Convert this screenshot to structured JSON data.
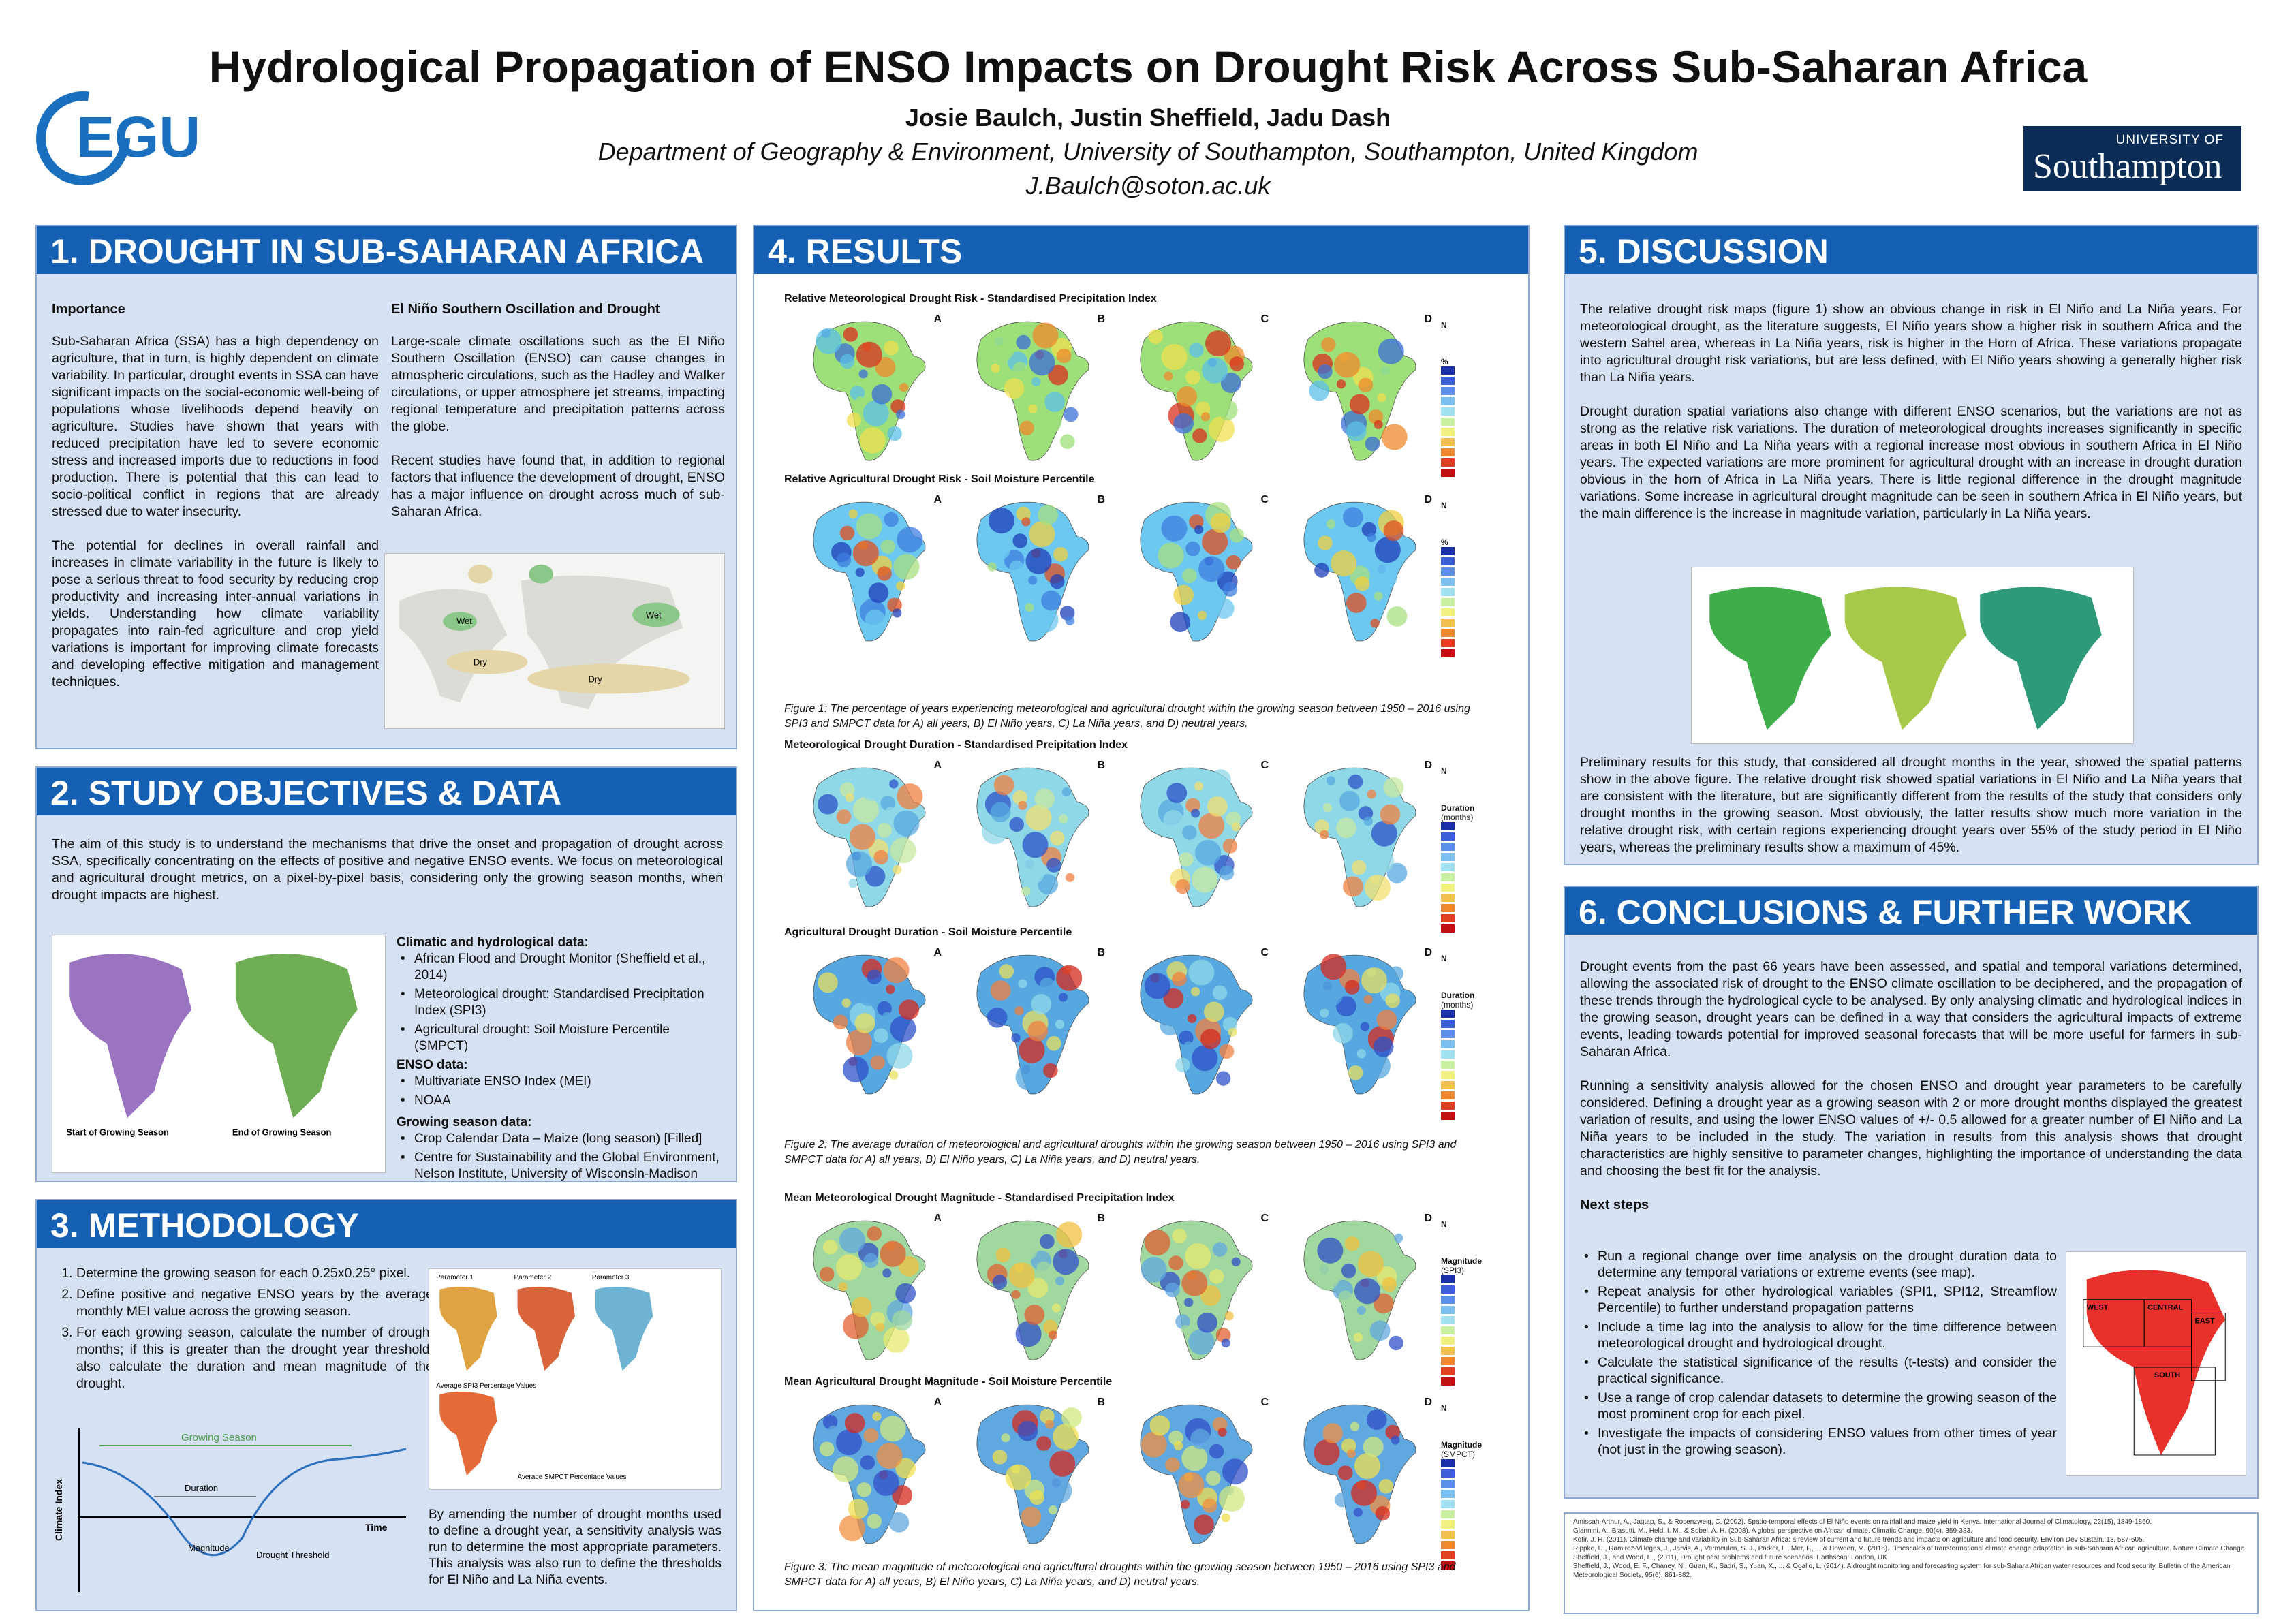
{
  "header": {
    "title": "Hydrological Propagation of ENSO Impacts on Drought Risk Across Sub-Saharan Africa",
    "authors": "Josie Baulch, Justin Sheffield, Jadu Dash",
    "affiliation": "Department of Geography & Environment, University of Southampton, Southampton, United Kingdom",
    "email": "J.Baulch@soton.ac.uk",
    "egu_logo": "EGU",
    "soton_small": "UNIVERSITY OF",
    "soton_big": "Southampton"
  },
  "s1": {
    "heading": "1. DROUGHT IN SUB-SAHARAN AFRICA",
    "importance_title": "Importance",
    "importance_p1": "Sub-Saharan Africa (SSA) has a high dependency on agriculture, that in turn, is highly dependent on climate variability. In particular, drought events in SSA can have significant impacts on the social-economic well-being of populations whose livelihoods depend heavily on agriculture. Studies have shown that years with reduced precipitation have led to severe economic stress and increased imports due to reductions in food production. There is potential that this can lead to socio-political conflict in regions that are already stressed due to water insecurity.",
    "importance_p2": "The potential for declines in overall rainfall and increases in climate variability in the future is likely to pose a serious threat to food security by reducing crop productivity and increasing inter-annual variations in yields. Understanding how climate variability propagates into rain-fed agriculture and crop yield variations is important for improving climate forecasts and developing effective mitigation and management techniques.",
    "enso_title": "El Niño Southern Oscillation and Drought",
    "enso_p1": "Large-scale climate oscillations such as the El Niño Southern Oscillation (ENSO) can cause changes in atmospheric circulations, such as the Hadley and Walker circulations, or upper atmosphere jet streams, impacting regional temperature and precipitation patterns across the globe.",
    "enso_p2": "Recent studies have found that, in addition to regional factors that influence the development of drought, ENSO has a major influence on drought across much of sub-Saharan Africa.",
    "map_wet": "Wet",
    "map_dry": "Dry"
  },
  "s2": {
    "heading": "2. STUDY OBJECTIVES & DATA",
    "intro": "The aim of this study is to understand the mechanisms that drive the onset and propagation of drought across SSA, specifically concentrating on the effects of positive and negative ENSO events. We focus on meteorological and agricultural drought metrics, on a pixel-by-pixel basis, considering only the growing season months, when drought impacts are highest.",
    "climate_title": "Climatic and hydrological data:",
    "climate_items": [
      "African Flood and Drought Monitor (Sheffield et al., 2014)",
      "Meteorological drought: Standardised Precipitation Index (SPI3)",
      "Agricultural drought: Soil Moisture Percentile (SMPCT)"
    ],
    "enso_title": "ENSO data:",
    "enso_items": [
      "Multivariate ENSO Index (MEI)",
      "NOAA"
    ],
    "gs_title": "Growing season data:",
    "gs_items": [
      "Crop Calendar Data – Maize (long season) [Filled]",
      "Centre for Sustainability and the Global Environment, Nelson Institute, University of Wisconsin-Madison"
    ],
    "map1_label": "Start of Growing Season",
    "map2_label": "End of Growing Season"
  },
  "s3": {
    "heading": "3. METHODOLOGY",
    "steps": [
      "Determine the growing season for each 0.25x0.25° pixel.",
      "Define positive and negative ENSO years by the average monthly MEI value across the growing season.",
      "For each growing season, calculate the number of drought months; if this is greater than the drought year threshold, also calculate the duration and mean magnitude of the drought."
    ],
    "graph_gs": "Growing Season",
    "graph_duration": "Duration",
    "graph_magnitude": "Magnitude",
    "graph_threshold": "Drought Threshold",
    "graph_y": "Climate Index",
    "graph_x": "Time",
    "sens_text": "By amending the number of drought months used to define a drought year, a sensitivity analysis was run to determine the most appropriate parameters. This analysis was also run to define the thresholds for El Niño and La Niña events.",
    "fig_p1": "Parameter 1",
    "fig_p2": "Parameter 2",
    "fig_p3": "Parameter 3",
    "fig_avg_spi": "Average SPI3 Percentage Values",
    "fig_avg_smpct": "Average SMPCT Percentage Values"
  },
  "s4": {
    "heading": "4. RESULTS",
    "t1": "Relative Meteorological Drought Risk - Standardised Precipitation Index",
    "t2": "Relative Agricultural Drought Risk - Soil Moisture Percentile",
    "cap1": "Figure 1: The percentage of years experiencing meteorological and agricultural drought within the growing season between 1950 – 2016 using SPI3 and SMPCT data for A) all years, B) El Niño years, C) La Niña years, and D) neutral years.",
    "t3": "Meteorological Drought Duration - Standardised Preipitation Index",
    "t4": "Agricultural Drought Duration - Soil Moisture Percentile",
    "cap2": "Figure 2: The average duration of meteorological and agricultural droughts within the growing season between 1950 – 2016 using SPI3 and SMPCT data for A) all years, B) El Niño years, C) La Niña years, and D) neutral years.",
    "t5": "Mean Meteorological Drought Magnitude - Standardised Precipitation Index",
    "t6": "Mean Agricultural Drought Magnitude - Soil Moisture Percentile",
    "cap3": "Figure 3: The mean magnitude of meteorological and agricultural droughts within the growing season between 1950 – 2016 using SPI3 and SMPCT data for A) all years, B) El Niño years, C) La Niña years, and D) neutral years.",
    "labels": [
      "A",
      "B",
      "C",
      "D"
    ],
    "leg_pct": "%",
    "leg_duration": "Duration",
    "leg_months": "(months)",
    "leg_magnitude": "Magnitude",
    "leg_spi": "(SPI3)",
    "leg_smpct": "(SMPCT)",
    "north": "N"
  },
  "s5": {
    "heading": "5. DISCUSSION",
    "p1": "The relative drought risk maps (figure 1) show an obvious change in risk in El Niño and La Niña years. For meteorological drought, as the literature suggests, El Niño years show a higher risk in southern Africa and the western Sahel area, whereas in La Niña years, risk is higher in the Horn of Africa. These variations propagate into agricultural drought risk variations, but are less defined, with El Niño years showing a generally higher risk than La Niña years.",
    "p2": "Drought duration spatial variations also change with different ENSO scenarios, but the variations are not as strong as the relative risk variations. The duration of meteorological droughts increases significantly in specific areas in both El Niño and La Niña years with a regional increase most obvious in southern Africa in El Niño years. The expected variations are more prominent for agricultural drought with an increase in drought duration obvious in the horn of Africa in La Niña years. There is little regional difference in the drought magnitude variations. Some increase in agricultural drought magnitude can be seen in southern Africa in El Niño years, but the main difference is the increase in magnitude variation, particularly in La Niña years.",
    "p3": "Preliminary results for this study, that considered all drought months in the year, showed the spatial patterns show in the above figure. The relative drought risk showed spatial variations in El Niño and La Niña years that are consistent with the literature, but are significantly different from the results of the study that considers only drought months in the growing season. Most obviously, the latter results show much more variation in the relative drought risk, with certain regions experiencing drought years over 55% of the study period in El Niño years, whereas the preliminary results show a maximum of 45%."
  },
  "s6": {
    "heading": "6. CONCLUSIONS & FURTHER WORK",
    "p1": "Drought events from the past 66 years have been assessed, and spatial and temporal variations determined, allowing the associated risk of drought to the ENSO climate oscillation to be deciphered, and the propagation of these trends through the hydrological cycle to be analysed. By only analysing climatic and hydrological indices in the growing season, drought years can be defined in a way that considers the agricultural impacts of extreme events, leading towards potential for improved seasonal forecasts that will be more useful for farmers in sub-Saharan Africa.",
    "p2": "Running a sensitivity analysis allowed for the chosen ENSO and drought year parameters to be carefully considered. Defining a drought year as a growing season with 2 or more drought months displayed the greatest variation of results, and using the lower ENSO values of +/- 0.5 allowed for a greater number of El Niño and La Niña years to be included in the study. The variation in results from this analysis shows that drought characteristics are highly sensitive to parameter changes, highlighting the importance of understanding the data and choosing the best fit for the analysis.",
    "next_title": "Next steps",
    "next_items": [
      "Run a regional change over time analysis on the drought duration data to determine any temporal variations or extreme events (see map).",
      "Repeat analysis for other hydrological variables (SPI1, SPI12, Streamflow Percentile) to further understand propagation patterns",
      "Include a time lag into the analysis to allow for the time difference between meteorological drought and hydrological drought.",
      "Calculate the statistical significance of the results (t-tests) and consider the practical significance.",
      "Use a range of crop calendar datasets to determine the growing season of the most prominent crop for each pixel.",
      "Investigate the impacts of considering ENSO values from other times of year (not just in the growing season)."
    ],
    "region_west": "WEST",
    "region_central": "CENTRAL",
    "region_east": "EAST",
    "region_south": "SOUTH"
  },
  "refs": [
    "Amissah-Arthur, A., Jagtap, S., & Rosenzweig, C. (2002). Spatio-temporal effects of El Niño events on rainfall and maize yield in Kenya. International Journal of Climatology, 22(15), 1849-1860.",
    "Giannini, A., Biasutti, M., Held, I. M., & Sobel, A. H. (2008). A global perspective on African climate. Climatic Change, 90(4), 359-383.",
    "Kotir, J. H. (2011). Climate change and variability in Sub-Saharan Africa: a review of current and future trends and impacts on agriculture and food security. Environ Dev Sustain, 13, 587-605.",
    "Rippke, U., Ramirez-Villegas, J., Jarvis, A., Vermeulen, S. J., Parker, L., Mer, F., ... & Howden, M. (2016). Timescales of transformational climate change adaptation in sub-Saharan African agriculture. Nature Climate Change.",
    "Sheffield, J., and Wood, E., (2011), Drought past problems and future scenarios. Earthscan: London, UK",
    "Sheffield, J., Wood, E. F., Chaney, N., Guan, K., Sadri, S., Yuan, X., ... & Ogallo, L. (2014). A drought monitoring and forecasting system for sub-Sahara African water resources and food security. Bulletin of the American Meteorological Society, 95(6), 861-882."
  ],
  "colors": {
    "header": "#1660b3",
    "panel": "#d6e2f3"
  }
}
